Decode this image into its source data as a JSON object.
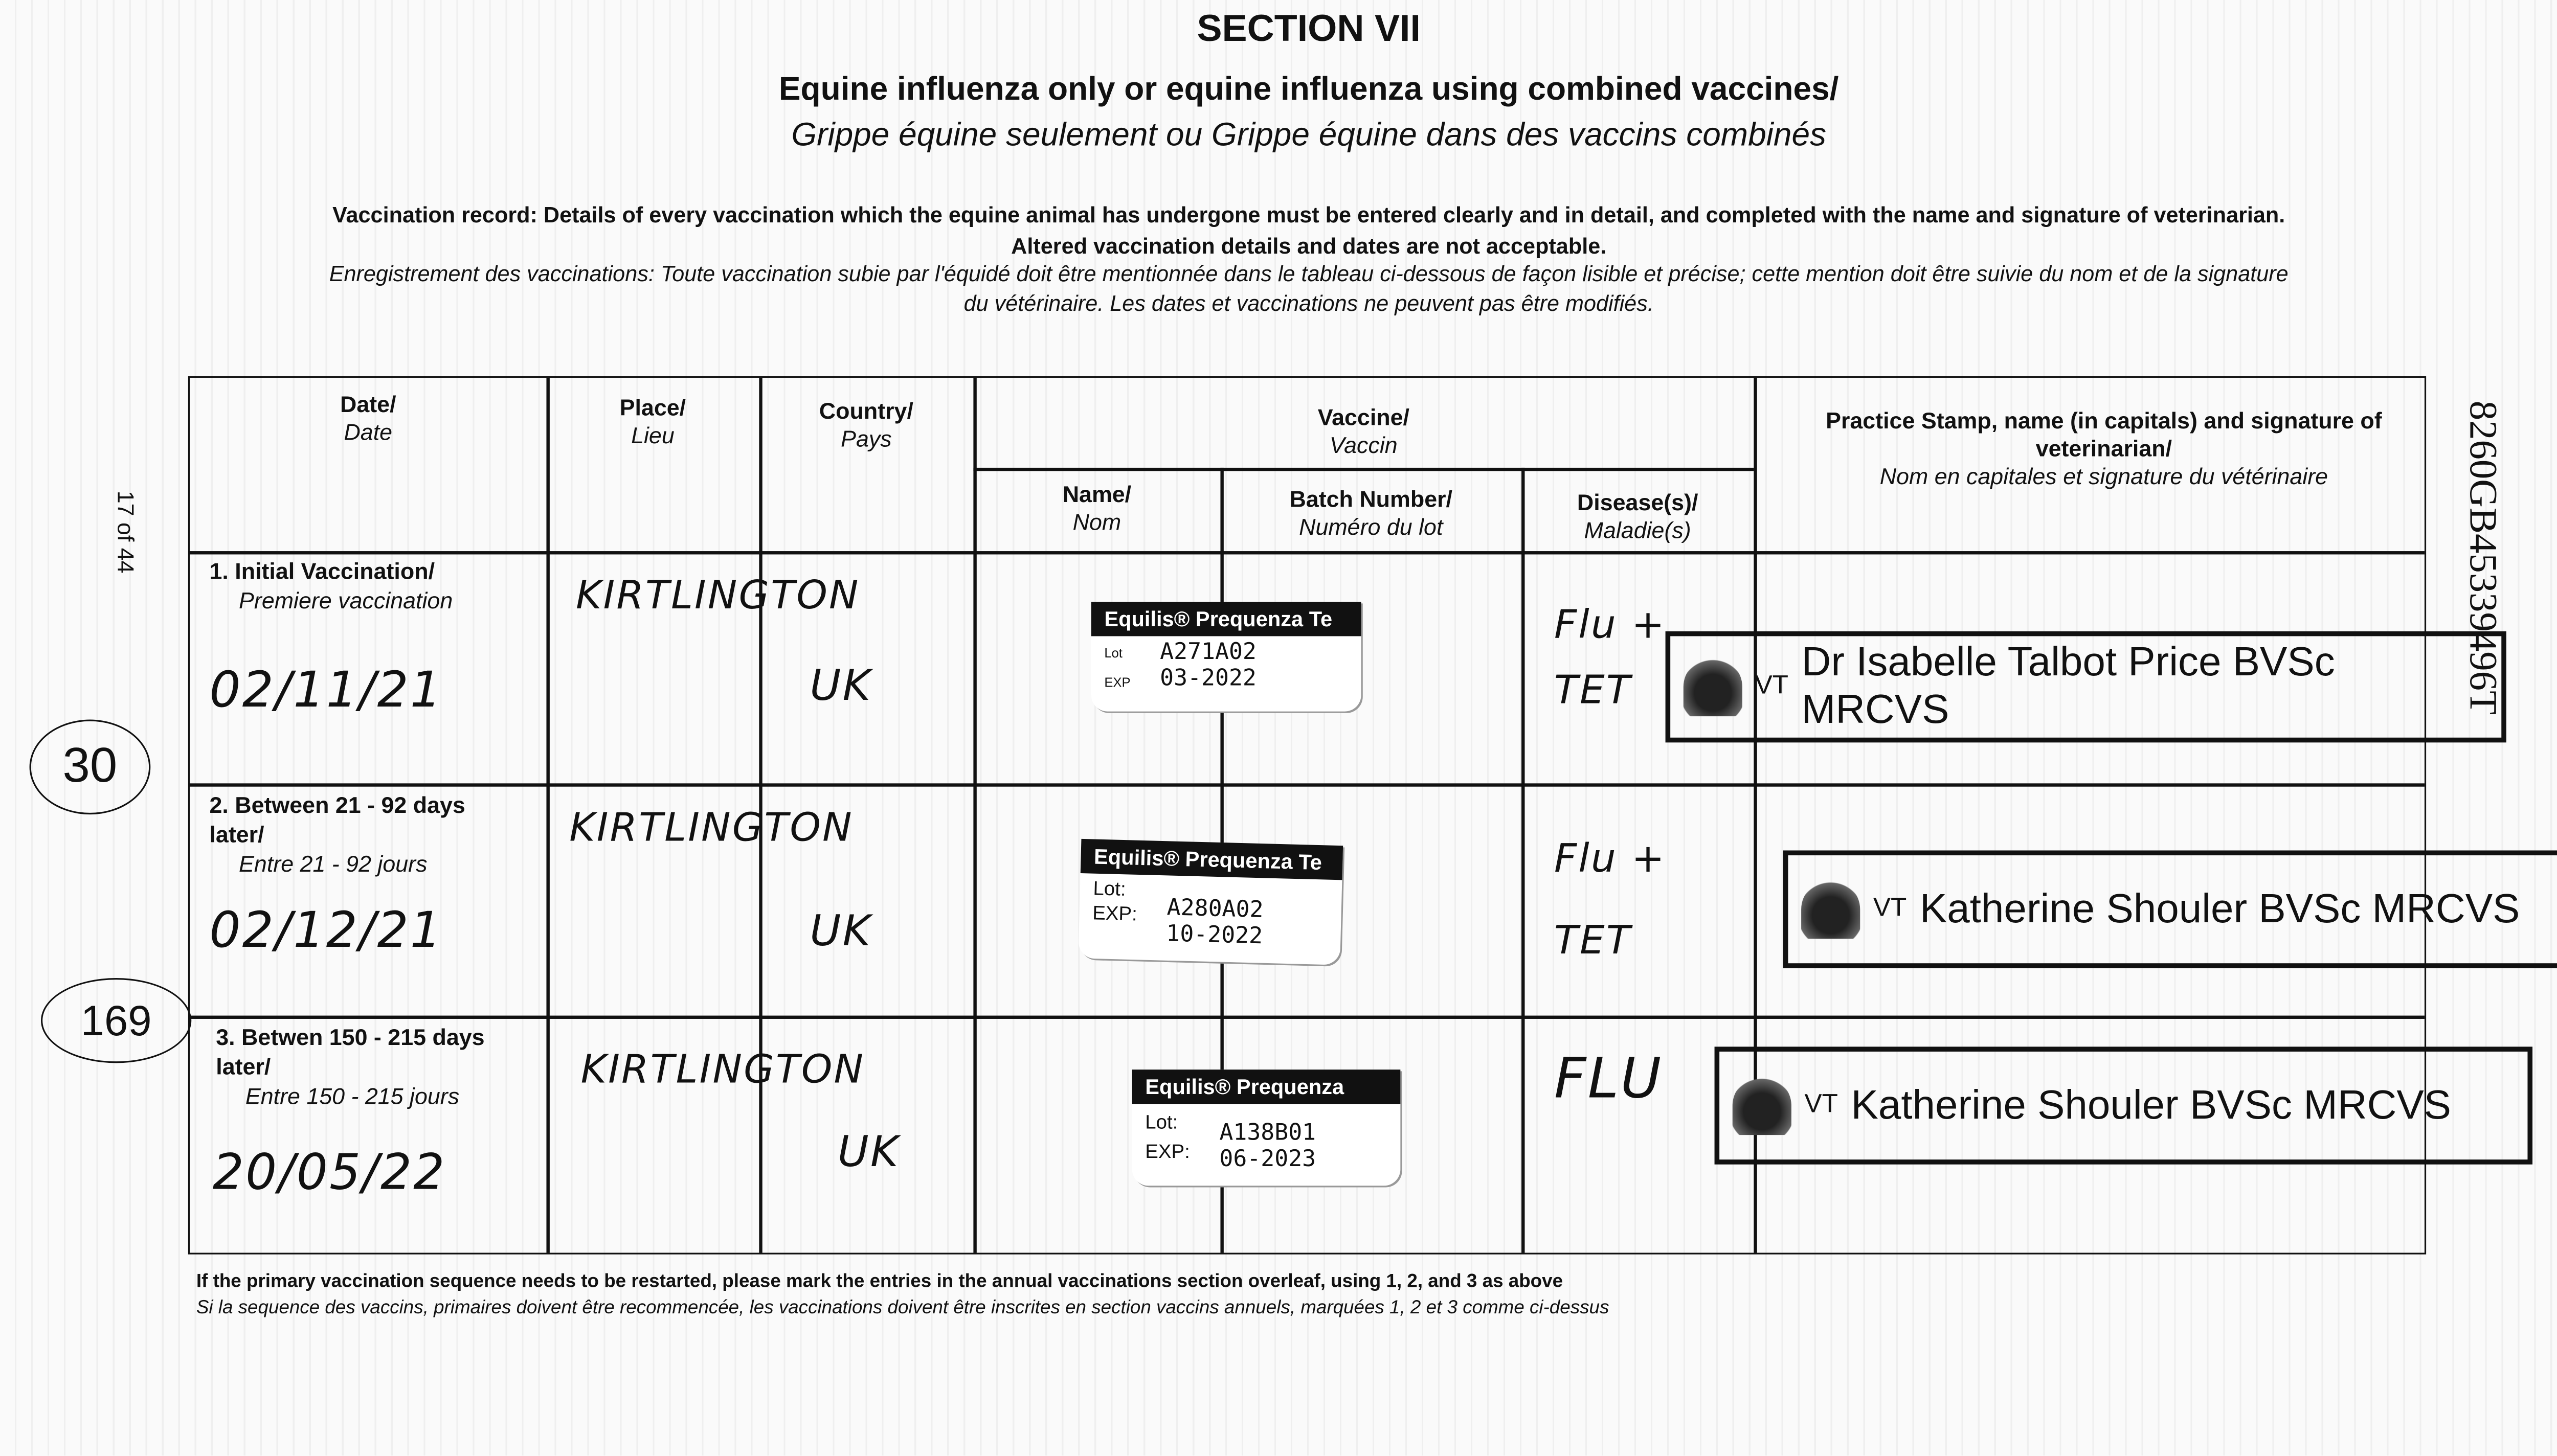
{
  "section_title": "SECTION VII",
  "title_en": "Equine influenza only or equine influenza using combined vaccines/",
  "title_fr": "Grippe équine seulement ou Grippe équine dans des vaccins combinés",
  "intro_en_1": "Vaccination record: Details of every vaccination which the equine animal has undergone must be entered clearly and in detail, and completed with the name and signature of veterinarian.",
  "intro_en_2": "Altered vaccination details and dates are not acceptable.",
  "intro_fr_1": "Enregistrement des vaccinations: Toute vaccination subie par l'équidé doit être mentionnée dans le tableau ci-dessous de façon lisible et précise; cette mention doit être suivie du nom et de la signature",
  "intro_fr_2": "du vétérinaire. Les dates et vaccinations ne peuvent pas être modifiés.",
  "page_marker": "17 of 44",
  "side_id": "8260GB45339496T",
  "circled_notes": [
    "30",
    "169"
  ],
  "headers": {
    "date": {
      "en": "Date/",
      "fr": "Date"
    },
    "place": {
      "en": "Place/",
      "fr": "Lieu"
    },
    "country": {
      "en": "Country/",
      "fr": "Pays"
    },
    "vaccine": {
      "en": "Vaccine/",
      "fr": "Vaccin"
    },
    "name": {
      "en": "Name/",
      "fr": "Nom"
    },
    "batch": {
      "en": "Batch Number/",
      "fr": "Numéro du lot"
    },
    "disease": {
      "en": "Disease(s)/",
      "fr": "Maladie(s)"
    },
    "practice": {
      "en": "Practice Stamp, name (in capitals) and signature of veterinarian/",
      "fr": "Nom en capitales et signature du vétérinaire"
    }
  },
  "rows": [
    {
      "label_en": "1. Initial Vaccination/",
      "label_fr": "Premiere vaccination",
      "date": "02/11/21",
      "place": "KIRTLINGTON",
      "country": "UK",
      "vaccine": "Equilis® Prequenza Te",
      "lot_label": "Lot",
      "lot": "A271A02",
      "exp_label": "EXP",
      "exp": "03-2022",
      "disease": "Flu + TET",
      "vet": "Dr Isabelle Talbot Price BVSc MRCVS",
      "practice_logo": "VT"
    },
    {
      "label_en": "2. Between 21 - 92 days later/",
      "label_fr": "Entre 21 - 92 jours",
      "date": "02/12/21",
      "place": "KIRTLINGTON",
      "country": "UK",
      "vaccine": "Equilis® Prequenza Te",
      "lot_label": "Lot:",
      "lot": "A280A02",
      "exp_label": "EXP:",
      "exp": "10-2022",
      "disease": "Flu + TET",
      "vet": "Katherine Shouler BVSc MRCVS",
      "practice_logo": "VT"
    },
    {
      "label_en": "3. Betwen 150 - 215 days later/",
      "label_fr": "Entre 150 - 215 jours",
      "date": "20/05/22",
      "place": "KIRTLINGTON",
      "country": "UK",
      "vaccine": "Equilis® Prequenza",
      "lot_label": "Lot:",
      "lot": "A138B01",
      "exp_label": "EXP:",
      "exp": "06-2023",
      "disease": "FLU",
      "vet": "Katherine Shouler BVSc MRCVS",
      "practice_logo": "VT"
    }
  ],
  "footer_en": "If the primary vaccination sequence needs to be restarted, please mark the entries in the annual vaccinations section overleaf, using 1, 2, and 3 as above",
  "footer_fr": "Si la sequence des vaccins, primaires doivent être recommencée, les vaccinations doivent être inscrites en section vaccins annuels, marquées 1, 2 et 3 comme ci-dessus"
}
